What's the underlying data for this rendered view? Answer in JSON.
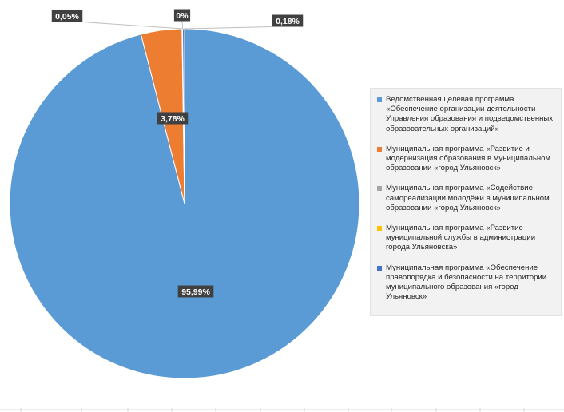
{
  "chart_data": {
    "type": "pie",
    "title": "",
    "start_angle_deg": 0,
    "legend_position": "right",
    "slices": [
      {
        "label": "Ведомственная целевая программа «Обеспечение организации деятельности Управления образования и подведомственных образовательных организаций»",
        "value": 95.99,
        "data_label": "95,99%",
        "color": "#5b9bd5"
      },
      {
        "label": "Муниципальная программа «Развитие и модернизация образования в муниципальном образовании «город Ульяновск»",
        "value": 3.78,
        "data_label": "3,78%",
        "color": "#ed7d31"
      },
      {
        "label": "Муниципальная программа «Содействие самореализации молодёжи в муниципальном образовании «город Ульяновск»",
        "value": 0.05,
        "data_label": "0,05%",
        "color": "#a5a5a5"
      },
      {
        "label": "Муниципальная программа «Развитие муниципальной службы в администрации города Ульяновска»",
        "value": 0.0,
        "data_label": "0%",
        "color": "#ffc000"
      },
      {
        "label": "Муниципальная программа «Обеспечение правопорядка и безопасности на территории муниципального образования «город Ульяновск»",
        "value": 0.18,
        "data_label": "0,18%",
        "color": "#4472c4"
      }
    ]
  }
}
